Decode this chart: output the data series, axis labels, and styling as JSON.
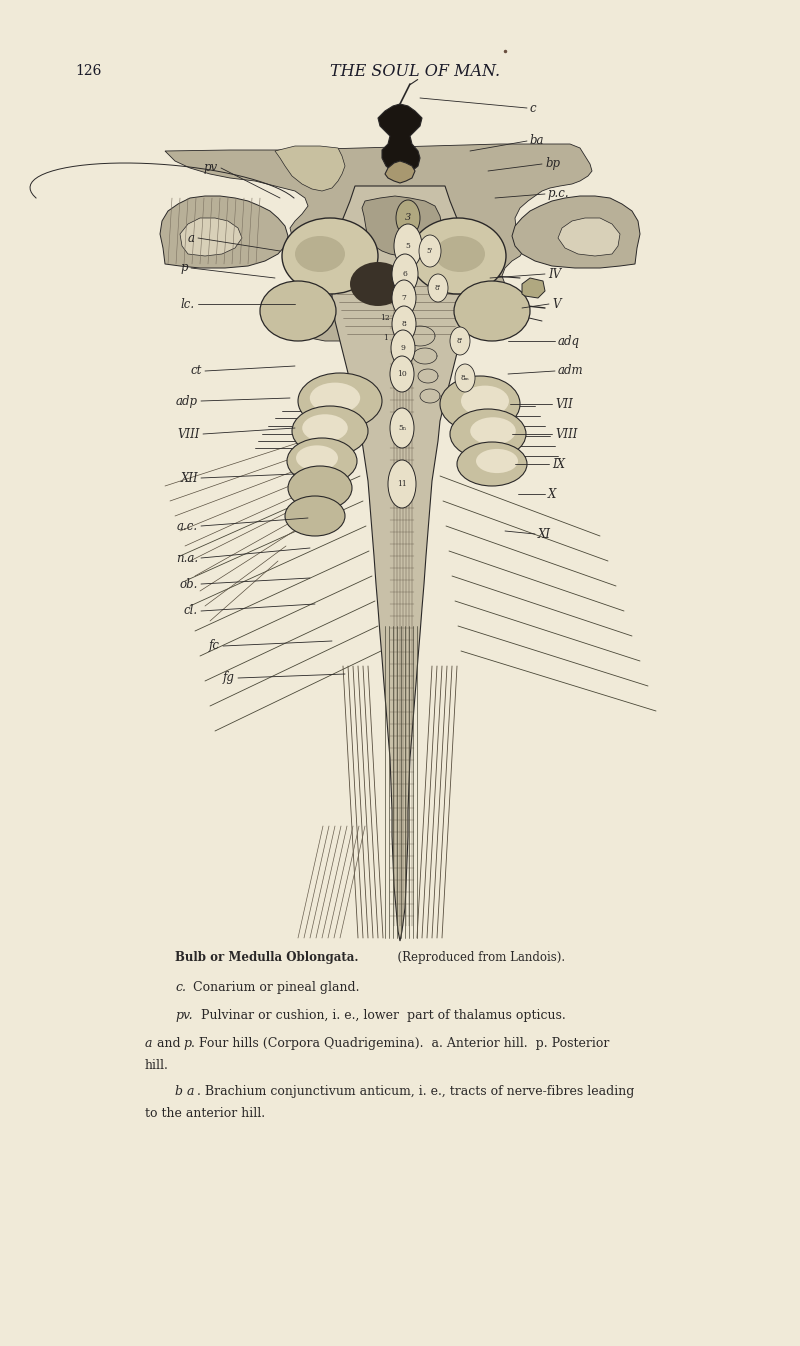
{
  "bg": "#f0ead8",
  "page_bg": "#ede8d0",
  "text_color": "#1a1a28",
  "page_num": "126",
  "header": "THE SOUL OF MAN.",
  "cap_title": "Bulb or Medulla Oblongata.",
  "cap_subtitle": "(Reproduced from Landois).",
  "cap1": "c. Conarium or pineal gland.",
  "cap2": "pv. Pulvinar or cushion, i. e., lower part of thalamus opticus.",
  "cap3a": "a",
  "cap3b": " and ",
  "cap3c": "p",
  "cap3d": ". Four hills (Corpora Quadrigemina).  ",
  "cap3e": "a",
  "cap3f": ". Anterior hill.  ",
  "cap3g": "p",
  "cap3h": ". Posterior hill.",
  "cap4a": "b a",
  "cap4b": ". Brachium conjunctivum anticum, i. e., tracts of nerve-fibres leading\nto the anterior hill.",
  "ink": "#2a2828",
  "dark": "#1a1510",
  "mid": "#8a8070",
  "light_flesh": "#c8bea0",
  "med_flesh": "#b8aa88",
  "dark_flesh": "#988a68"
}
